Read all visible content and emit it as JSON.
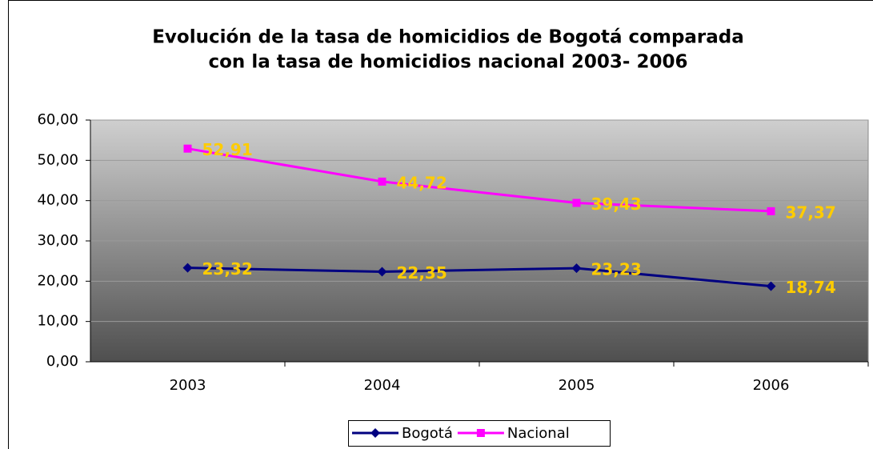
{
  "chart_data": {
    "type": "line",
    "title": [
      "Evolución de la tasa de homicidios de Bogotá comparada",
      "con la tasa de homicidios nacional 2003- 2006"
    ],
    "categories": [
      "2003",
      "2004",
      "2005",
      "2006"
    ],
    "series": [
      {
        "name": "Bogotá",
        "color": "#000080",
        "marker": "diamond",
        "values": [
          23.32,
          22.35,
          23.23,
          18.74
        ],
        "value_labels": [
          "23,32",
          "22,35",
          "23,23",
          "18,74"
        ]
      },
      {
        "name": "Nacional",
        "color": "#ff00ff",
        "marker": "square",
        "values": [
          52.91,
          44.72,
          39.43,
          37.37
        ],
        "value_labels": [
          "52,91",
          "44,72",
          "39,43",
          "37,37"
        ]
      }
    ],
    "ylim": [
      0,
      60
    ],
    "yticks": [
      {
        "value": 0,
        "label": "0,00"
      },
      {
        "value": 10,
        "label": "10,00"
      },
      {
        "value": 20,
        "label": "20,00"
      },
      {
        "value": 30,
        "label": "30,00"
      },
      {
        "value": 40,
        "label": "40,00"
      },
      {
        "value": 50,
        "label": "50,00"
      },
      {
        "value": 60,
        "label": "60,00"
      }
    ],
    "grid": true,
    "legend": "bottom",
    "label_color": "#ffcc00"
  }
}
